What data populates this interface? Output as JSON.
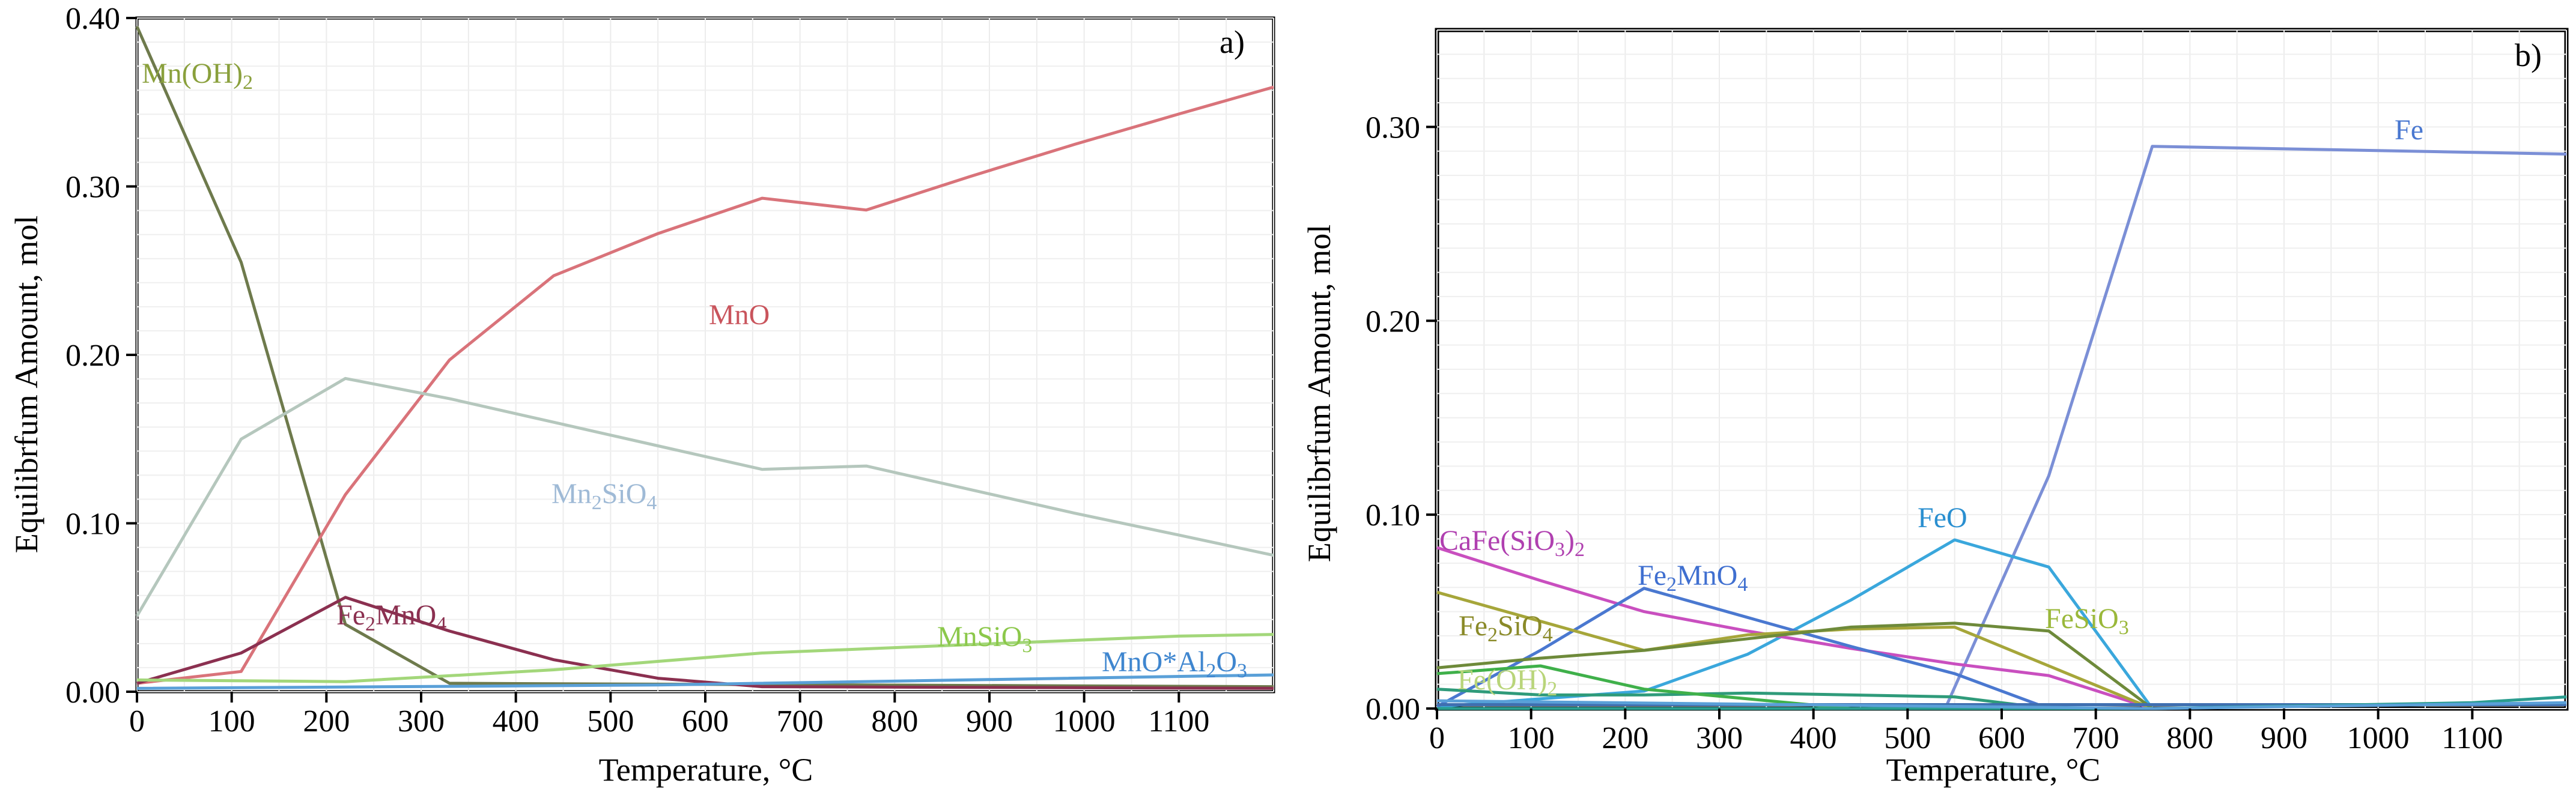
{
  "chart_data": [
    {
      "panel": "a)",
      "type": "line",
      "xlabel": "Temperature, °C",
      "ylabel": "Equilibrfum Amount, mol",
      "xlim": [
        0,
        1200
      ],
      "ylim": [
        0,
        0.4
      ],
      "xticks": [
        0,
        100,
        200,
        300,
        400,
        500,
        600,
        700,
        800,
        900,
        1000,
        1100
      ],
      "yticks": [
        0,
        0.1,
        0.2,
        0.3,
        0.4
      ],
      "ytick_labels": [
        "0.00",
        "0.10",
        "0.20",
        "0.30",
        "0.40"
      ],
      "series": [
        {
          "name": "Mn(OH)2",
          "label": {
            "base": "Mn(OH)",
            "sub": "2"
          },
          "color": "#6e7a4c",
          "x": [
            0,
            110,
            220,
            330,
            1200
          ],
          "y": [
            0.395,
            0.255,
            0.04,
            0.005,
            0.003
          ]
        },
        {
          "name": "MnO",
          "label": {
            "base": "MnO",
            "sub": ""
          },
          "color": "#d9737a",
          "x": [
            0,
            110,
            220,
            330,
            440,
            550,
            660,
            770,
            880,
            990,
            1100,
            1200
          ],
          "y": [
            0.005,
            0.012,
            0.117,
            0.197,
            0.247,
            0.272,
            0.293,
            0.286,
            0.306,
            0.325,
            0.343,
            0.359
          ]
        },
        {
          "name": "Mn2SiO4",
          "label": {
            "base": "Mn",
            "sub": "2",
            "rest": "SiO",
            "sub2": "4"
          },
          "color": "#b5c7bd",
          "x": [
            0,
            110,
            220,
            330,
            440,
            550,
            660,
            770,
            880,
            990,
            1100,
            1200
          ],
          "y": [
            0.045,
            0.15,
            0.186,
            0.174,
            0.16,
            0.146,
            0.132,
            0.134,
            0.12,
            0.106,
            0.093,
            0.081
          ]
        },
        {
          "name": "Fe2MnO4",
          "label": {
            "base": "Fe",
            "sub": "2",
            "rest": "MnO",
            "sub2": "4"
          },
          "color": "#8b3050",
          "x": [
            0,
            110,
            220,
            330,
            440,
            550,
            660,
            1200
          ],
          "y": [
            0.005,
            0.023,
            0.056,
            0.036,
            0.019,
            0.008,
            0.003,
            0.002
          ]
        },
        {
          "name": "MnSiO3",
          "label": {
            "base": "MnSiO",
            "sub": "3"
          },
          "color": "#a3d77a",
          "x": [
            0,
            220,
            440,
            660,
            880,
            1100,
            1200
          ],
          "y": [
            0.007,
            0.006,
            0.013,
            0.023,
            0.028,
            0.033,
            0.034
          ]
        },
        {
          "name": "MnO*Al2O3",
          "label": {
            "base": "MnO*Al",
            "sub": "2",
            "rest": "O",
            "sub2": "3"
          },
          "color": "#5aa0d8",
          "x": [
            0,
            550,
            1200
          ],
          "y": [
            0.002,
            0.004,
            0.01
          ]
        }
      ]
    },
    {
      "panel": "b)",
      "type": "line",
      "xlabel": "Temperature, °C",
      "ylabel": "Equilibrfum Amount, mol",
      "xlim": [
        0,
        1200
      ],
      "ylim": [
        0,
        0.35
      ],
      "xticks": [
        0,
        100,
        200,
        300,
        400,
        500,
        600,
        700,
        800,
        900,
        1000,
        1100
      ],
      "yticks": [
        0,
        0.1,
        0.2,
        0.3
      ],
      "ytick_labels": [
        "0.00",
        "0.10",
        "0.20",
        "0.30"
      ],
      "series": [
        {
          "name": "Fe",
          "label": {
            "base": "Fe",
            "sub": ""
          },
          "color": "#7b8fd6",
          "x": [
            0,
            540,
            650,
            760,
            1200
          ],
          "y": [
            0.0,
            0.0,
            0.12,
            0.29,
            0.286
          ]
        },
        {
          "name": "FeO",
          "label": {
            "base": "FeO",
            "sub": ""
          },
          "color": "#3aa7dc",
          "x": [
            0,
            220,
            330,
            440,
            550,
            650,
            760
          ],
          "y": [
            0.001,
            0.009,
            0.028,
            0.056,
            0.087,
            0.073,
            0.0
          ]
        },
        {
          "name": "CaFe(SiO3)2",
          "label": {
            "base": "CaFe(SiO",
            "sub": "3",
            "rest": ")",
            "sub2": "2"
          },
          "color": "#c94fbf",
          "x": [
            0,
            110,
            220,
            330,
            440,
            550,
            650,
            760
          ],
          "y": [
            0.083,
            0.066,
            0.05,
            0.04,
            0.031,
            0.023,
            0.017,
            0.0
          ]
        },
        {
          "name": "Fe2MnO4",
          "label": {
            "base": "Fe",
            "sub": "2",
            "rest": "MnO",
            "sub2": "4"
          },
          "color": "#4a78d0",
          "x": [
            0,
            110,
            220,
            330,
            440,
            550,
            650
          ],
          "y": [
            0.001,
            0.03,
            0.062,
            0.047,
            0.032,
            0.018,
            0.0
          ]
        },
        {
          "name": "Fe2SiO4",
          "label": {
            "base": "Fe",
            "sub": "2",
            "rest": "SiO",
            "sub2": "4"
          },
          "color": "#a6a63a",
          "x": [
            0,
            110,
            220,
            330,
            440,
            550,
            760
          ],
          "y": [
            0.06,
            0.045,
            0.03,
            0.038,
            0.041,
            0.042,
            0.0
          ]
        },
        {
          "name": "FeSiO3",
          "label": {
            "base": "FeSiO",
            "sub": "3"
          },
          "color": "#6e8a3a",
          "x": [
            0,
            110,
            220,
            330,
            440,
            550,
            650,
            760
          ],
          "y": [
            0.021,
            0.026,
            0.03,
            0.036,
            0.042,
            0.044,
            0.04,
            0.0
          ]
        },
        {
          "name": "Fe(OH)2",
          "label": {
            "base": "Fe(OH)",
            "sub": "2"
          },
          "color": "#2f9b7a",
          "x": [
            0,
            110,
            220,
            330,
            440,
            550,
            650
          ],
          "y": [
            0.01,
            0.007,
            0.007,
            0.008,
            0.007,
            0.006,
            0.0
          ]
        },
        {
          "name": "green-1",
          "label": null,
          "color": "#3fb04a",
          "x": [
            0,
            110,
            220,
            440
          ],
          "y": [
            0.018,
            0.022,
            0.01,
            0.0
          ]
        },
        {
          "name": "base-a",
          "label": null,
          "color": "#3f6fb0",
          "x": [
            0,
            1200
          ],
          "y": [
            0.002,
            0.002
          ]
        },
        {
          "name": "base-b",
          "label": null,
          "color": "#2a9d8f",
          "x": [
            0,
            760,
            1100,
            1200
          ],
          "y": [
            0.0,
            0.0,
            0.003,
            0.006
          ]
        },
        {
          "name": "base-c",
          "label": null,
          "color": "#5aa0d8",
          "x": [
            0,
            760,
            1200
          ],
          "y": [
            0.004,
            0.0,
            0.003
          ]
        }
      ]
    }
  ],
  "annotations": {
    "a": {
      "MnOH2": "Mn(OH)",
      "MnOH2_sub": "2",
      "MnO": "MnO",
      "Mn2SiO4_a": "Mn",
      "Mn2SiO4_sub1": "2",
      "Mn2SiO4_b": "SiO",
      "Mn2SiO4_sub2": "4",
      "Fe2MnO4_a": "Fe",
      "Fe2MnO4_sub1": "2",
      "Fe2MnO4_b": "MnO",
      "Fe2MnO4_sub2": "4",
      "MnSiO3_a": "MnSiO",
      "MnSiO3_sub": "3",
      "MnOAl_a": "MnO*Al",
      "MnOAl_sub1": "2",
      "MnOAl_b": "O",
      "MnOAl_sub2": "3"
    },
    "b": {
      "Fe": "Fe",
      "FeO": "FeO",
      "CaFe_a": "CaFe(SiO",
      "CaFe_sub1": "3",
      "CaFe_b": ")",
      "CaFe_sub2": "2",
      "Fe2MnO4_a": "Fe",
      "Fe2MnO4_sub1": "2",
      "Fe2MnO4_b": "MnO",
      "Fe2MnO4_sub2": "4",
      "Fe2SiO4_a": "Fe",
      "Fe2SiO4_sub1": "2",
      "Fe2SiO4_b": "SiO",
      "Fe2SiO4_sub2": "4",
      "FeSiO3_a": "FeSiO",
      "FeSiO3_sub": "3",
      "FeOH2_a": "Fe(OH)",
      "FeOH2_sub": "2"
    }
  }
}
